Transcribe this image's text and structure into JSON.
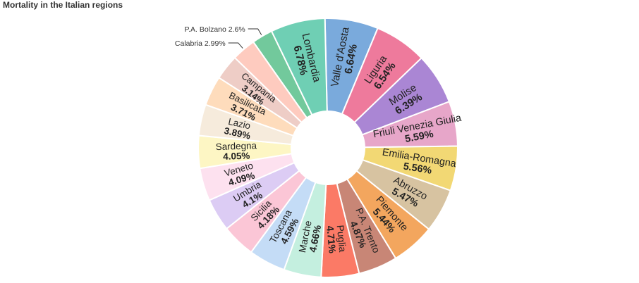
{
  "chart_data": {
    "type": "pie",
    "title": "Mortality in the Italian regions",
    "unit": "%",
    "slices": [
      {
        "name": "Valle d'Aosta",
        "value": 6.64,
        "value_label": "6.64%",
        "color": "#7aaadc"
      },
      {
        "name": "Liguria",
        "value": 6.54,
        "value_label": "6.54%",
        "color": "#ee7a9c"
      },
      {
        "name": "Molise",
        "value": 6.39,
        "value_label": "6.39%",
        "color": "#aa86d4"
      },
      {
        "name": "Friuli Venezia Giulia",
        "value": 5.59,
        "value_label": "5.59%",
        "color": "#e7a6c9"
      },
      {
        "name": "Emilia-Romagna",
        "value": 5.56,
        "value_label": "5.56%",
        "color": "#f2d874"
      },
      {
        "name": "Abruzzo",
        "value": 5.47,
        "value_label": "5.47%",
        "color": "#d7c3a1"
      },
      {
        "name": "Piemonte",
        "value": 5.44,
        "value_label": "5.44%",
        "color": "#f3a65e"
      },
      {
        "name": "P.A. Trento",
        "value": 4.87,
        "value_label": "4.87%",
        "color": "#c88676"
      },
      {
        "name": "Puglia",
        "value": 4.71,
        "value_label": "4.71%",
        "color": "#fb7a66"
      },
      {
        "name": "Marche",
        "value": 4.66,
        "value_label": "4.66%",
        "color": "#c4efdf"
      },
      {
        "name": "Toscana",
        "value": 4.59,
        "value_label": "4.59%",
        "color": "#c4dcf6"
      },
      {
        "name": "Sicilia",
        "value": 4.18,
        "value_label": "4.18%",
        "color": "#fbc6d6"
      },
      {
        "name": "Umbria",
        "value": 4.1,
        "value_label": "4.1%",
        "color": "#dcccf4"
      },
      {
        "name": "Veneto",
        "value": 4.09,
        "value_label": "4.09%",
        "color": "#fde1ef"
      },
      {
        "name": "Sardegna",
        "value": 4.05,
        "value_label": "4.05%",
        "color": "#fdf6c4"
      },
      {
        "name": "Lazio",
        "value": 3.89,
        "value_label": "3.89%",
        "color": "#f6ebdc"
      },
      {
        "name": "Basilicata",
        "value": 3.71,
        "value_label": "3.71%",
        "color": "#fedcbc"
      },
      {
        "name": "Campania",
        "value": 3.14,
        "value_label": "3.14%",
        "color": "#eecdc6"
      },
      {
        "name": "Calabria",
        "value": 2.99,
        "value_label": "2.99%",
        "color": "#fecbbf"
      },
      {
        "name": "P.A. Bolzano",
        "value": 2.6,
        "value_label": "2.6%",
        "color": "#72c99c"
      },
      {
        "name": "Lombardia",
        "value": 6.78,
        "value_label": "6.78%",
        "color": "#6fcfb4"
      }
    ]
  }
}
